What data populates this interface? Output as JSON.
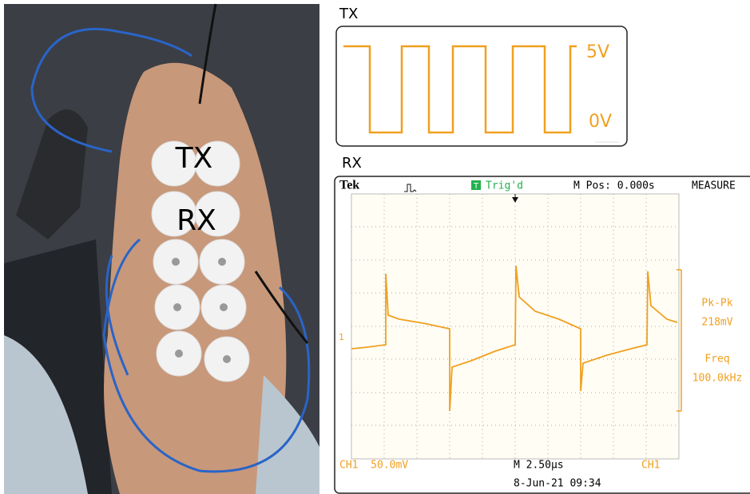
{
  "photo": {
    "labels": [
      "TX",
      "RX"
    ]
  },
  "tx": {
    "title": "TX",
    "high_label": "5V",
    "low_label": "0V"
  },
  "rx": {
    "title": "RX",
    "scope": {
      "brand": "Tek",
      "trigger_icon": "T",
      "trigger": "Trig'd",
      "position": "M Pos: 0.000s",
      "menu": "MEASURE",
      "channel_marker": "1",
      "measurements": [
        {
          "label": "Pk-Pk",
          "value": "218mV"
        },
        {
          "label": "Freq",
          "value": "100.0kHz"
        }
      ],
      "channel_scale": "CH1  50.0mV",
      "timebase": "M 2.50µs",
      "trigger_source": "CH1",
      "timestamp": "8-Jun-21 09:34"
    }
  }
}
